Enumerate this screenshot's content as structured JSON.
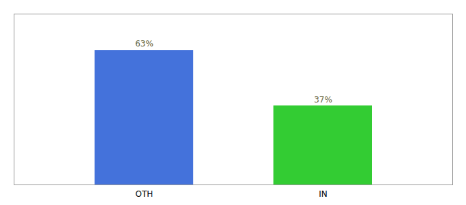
{
  "chart_data": {
    "type": "bar",
    "categories": [
      "OTH",
      "IN"
    ],
    "values": [
      63,
      37
    ],
    "value_labels": [
      "63%",
      "37%"
    ],
    "colors": [
      "#4472db",
      "#33cc33"
    ],
    "ylim": [
      0,
      80
    ],
    "data_labels": true,
    "tick_labels": "x"
  }
}
